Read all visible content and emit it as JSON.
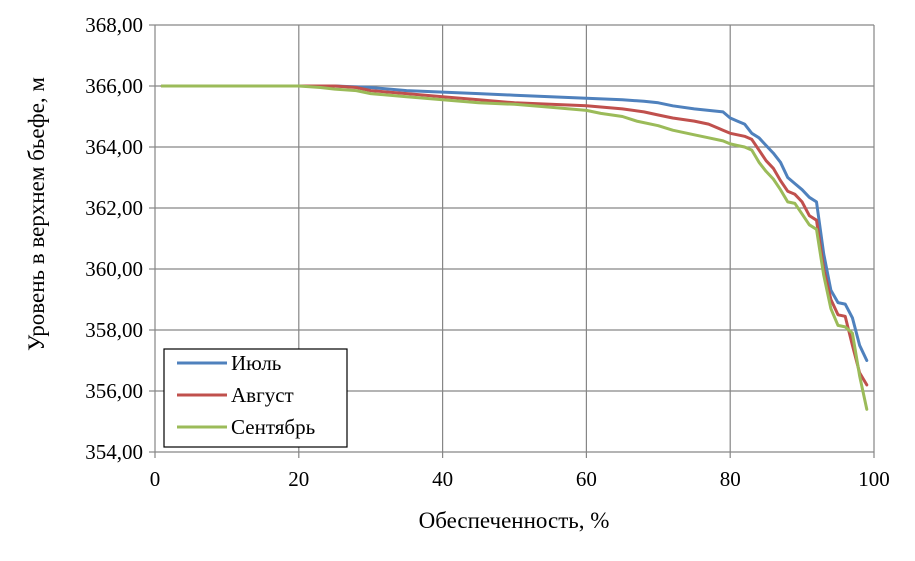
{
  "chart_data": {
    "type": "line",
    "xlabel": "Обеспеченность, %",
    "ylabel": "Уровень в верхнем бьефе, м",
    "xlim": [
      0,
      100
    ],
    "ylim": [
      354,
      368
    ],
    "x_ticks": [
      "0",
      "20",
      "40",
      "60",
      "80",
      "100"
    ],
    "y_ticks": [
      "354,00",
      "356,00",
      "358,00",
      "360,00",
      "362,00",
      "364,00",
      "366,00",
      "368,00"
    ],
    "grid": true,
    "legend_position": "bottom-left",
    "series": [
      {
        "name": "Июль",
        "color": "#4f81bd",
        "x": [
          1,
          20,
          25,
          30,
          35,
          40,
          45,
          50,
          55,
          60,
          65,
          68,
          70,
          72,
          75,
          77,
          79,
          80,
          81,
          82,
          83,
          84,
          85,
          86,
          87,
          88,
          89,
          90,
          91,
          92,
          93,
          94,
          95,
          96,
          97,
          98,
          99
        ],
        "y": [
          366.0,
          366.0,
          366.0,
          365.95,
          365.85,
          365.8,
          365.75,
          365.7,
          365.65,
          365.6,
          365.55,
          365.5,
          365.45,
          365.35,
          365.25,
          365.2,
          365.15,
          364.95,
          364.85,
          364.75,
          364.45,
          364.3,
          364.05,
          363.8,
          363.5,
          363.0,
          362.8,
          362.6,
          362.35,
          362.2,
          360.5,
          359.3,
          358.9,
          358.85,
          358.4,
          357.5,
          357.0
        ]
      },
      {
        "name": "Август",
        "color": "#c0504d",
        "x": [
          1,
          20,
          25,
          28,
          30,
          35,
          40,
          45,
          50,
          55,
          60,
          65,
          68,
          70,
          72,
          75,
          77,
          79,
          80,
          81,
          82,
          83,
          84,
          85,
          86,
          87,
          88,
          89,
          90,
          91,
          92,
          93,
          94,
          95,
          96,
          97,
          98,
          99
        ],
        "y": [
          366.0,
          366.0,
          366.0,
          365.95,
          365.85,
          365.75,
          365.65,
          365.55,
          365.45,
          365.4,
          365.35,
          365.25,
          365.15,
          365.05,
          364.95,
          364.85,
          364.75,
          364.55,
          364.45,
          364.4,
          364.35,
          364.25,
          363.9,
          363.55,
          363.3,
          362.9,
          362.55,
          362.45,
          362.2,
          361.75,
          361.6,
          360.0,
          359.0,
          358.5,
          358.45,
          357.5,
          356.6,
          356.2
        ]
      },
      {
        "name": "Сентябрь",
        "color": "#9bbb59",
        "x": [
          1,
          20,
          23,
          25,
          28,
          30,
          35,
          40,
          45,
          50,
          55,
          60,
          62,
          65,
          67,
          70,
          72,
          75,
          77,
          79,
          80,
          81,
          82,
          83,
          84,
          85,
          86,
          87,
          88,
          89,
          90,
          91,
          92,
          93,
          94,
          95,
          96,
          97,
          98,
          99
        ],
        "y": [
          366.0,
          366.0,
          365.95,
          365.9,
          365.85,
          365.75,
          365.65,
          365.55,
          365.45,
          365.4,
          365.3,
          365.2,
          365.1,
          365.0,
          364.85,
          364.7,
          364.55,
          364.4,
          364.3,
          364.2,
          364.1,
          364.05,
          364.0,
          363.9,
          363.5,
          363.2,
          362.95,
          362.6,
          362.2,
          362.15,
          361.8,
          361.45,
          361.3,
          359.8,
          358.7,
          358.15,
          358.1,
          357.9,
          356.5,
          355.4
        ]
      }
    ]
  }
}
